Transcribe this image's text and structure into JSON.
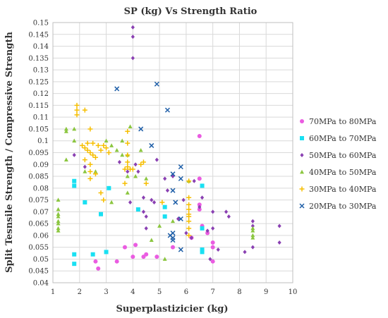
{
  "chart_data": {
    "type": "scatter",
    "title": "SP (kg) Vs Strength Ratio",
    "xlabel": "Superplastizicier (kg)",
    "ylabel": "Split Tesnsile Strength / Compressive Strength",
    "xlim": [
      1,
      10
    ],
    "ylim": [
      0.04,
      0.15
    ],
    "xticks": [
      1,
      2,
      3,
      4,
      5,
      6,
      7,
      8,
      9,
      10
    ],
    "yticks": [
      0.04,
      0.045,
      0.05,
      0.055,
      0.06,
      0.065,
      0.07,
      0.075,
      0.08,
      0.085,
      0.09,
      0.095,
      0.1,
      0.105,
      0.11,
      0.115,
      0.12,
      0.125,
      0.13,
      0.135,
      0.14,
      0.145,
      0.15
    ],
    "ytick_labels": [
      "0.04",
      "0.045",
      "0.05",
      "0.055",
      "0.06",
      "0.065",
      "0.07",
      "0.075",
      "0.08",
      "0.085",
      "0.09",
      "0.095",
      "0.1",
      "0.105",
      "0.11",
      "0.115",
      "0.12",
      "0.125",
      "0.13",
      "0.135",
      "0.14",
      "0.145",
      "0.15"
    ],
    "grid": true,
    "legend_position": "right",
    "series": [
      {
        "name": "70MPa to 80MPa",
        "marker": "circle",
        "color": "#ea5ce1",
        "points": [
          [
            2.6,
            0.049
          ],
          [
            2.7,
            0.046
          ],
          [
            3.4,
            0.049
          ],
          [
            3.7,
            0.055
          ],
          [
            4.0,
            0.051
          ],
          [
            4.1,
            0.056
          ],
          [
            4.4,
            0.051
          ],
          [
            4.5,
            0.052
          ],
          [
            4.9,
            0.051
          ],
          [
            5.5,
            0.055
          ],
          [
            6.2,
            0.059
          ],
          [
            6.5,
            0.073
          ],
          [
            6.5,
            0.071
          ],
          [
            6.6,
            0.064
          ],
          [
            6.8,
            0.061
          ],
          [
            7.0,
            0.057
          ],
          [
            7.0,
            0.055
          ],
          [
            7.0,
            0.049
          ],
          [
            6.5,
            0.102
          ],
          [
            6.5,
            0.084
          ]
        ]
      },
      {
        "name": "60MPa to 70MPa",
        "marker": "square",
        "color": "#19e0f2",
        "points": [
          [
            1.8,
            0.048
          ],
          [
            1.8,
            0.052
          ],
          [
            1.8,
            0.081
          ],
          [
            1.8,
            0.083
          ],
          [
            2.2,
            0.074
          ],
          [
            2.5,
            0.052
          ],
          [
            2.8,
            0.069
          ],
          [
            3.0,
            0.053
          ],
          [
            3.1,
            0.08
          ],
          [
            4.2,
            0.071
          ],
          [
            5.2,
            0.068
          ],
          [
            5.2,
            0.072
          ],
          [
            6.6,
            0.063
          ],
          [
            6.6,
            0.054
          ],
          [
            6.6,
            0.053
          ],
          [
            6.6,
            0.081
          ]
        ]
      },
      {
        "name": "50MPa to 60MPa",
        "marker": "diamond",
        "color": "#8a40b2",
        "points": [
          [
            4.0,
            0.148
          ],
          [
            4.0,
            0.144
          ],
          [
            4.0,
            0.135
          ],
          [
            1.8,
            0.094
          ],
          [
            2.2,
            0.089
          ],
          [
            3.5,
            0.091
          ],
          [
            3.8,
            0.087
          ],
          [
            3.9,
            0.074
          ],
          [
            4.1,
            0.09
          ],
          [
            4.2,
            0.087
          ],
          [
            4.4,
            0.076
          ],
          [
            4.4,
            0.07
          ],
          [
            4.5,
            0.068
          ],
          [
            4.7,
            0.075
          ],
          [
            4.8,
            0.074
          ],
          [
            4.9,
            0.092
          ],
          [
            5.2,
            0.084
          ],
          [
            5.3,
            0.079
          ],
          [
            5.5,
            0.085
          ],
          [
            5.7,
            0.067
          ],
          [
            5.9,
            0.075
          ],
          [
            6.0,
            0.061
          ],
          [
            6.2,
            0.059
          ],
          [
            6.3,
            0.083
          ],
          [
            6.5,
            0.072
          ],
          [
            6.6,
            0.076
          ],
          [
            6.8,
            0.062
          ],
          [
            7.0,
            0.07
          ],
          [
            7.0,
            0.063
          ],
          [
            7.2,
            0.054
          ],
          [
            7.5,
            0.07
          ],
          [
            7.6,
            0.068
          ],
          [
            8.2,
            0.053
          ],
          [
            8.5,
            0.066
          ],
          [
            8.5,
            0.064
          ],
          [
            8.5,
            0.055
          ],
          [
            9.5,
            0.064
          ],
          [
            9.5,
            0.057
          ],
          [
            4.5,
            0.063
          ],
          [
            6.9,
            0.05
          ]
        ]
      },
      {
        "name": "40MPa to 50MPa",
        "marker": "triangle",
        "color": "#8bc63f",
        "points": [
          [
            1.2,
            0.075
          ],
          [
            1.2,
            0.071
          ],
          [
            1.2,
            0.069
          ],
          [
            1.2,
            0.068
          ],
          [
            1.2,
            0.066
          ],
          [
            1.2,
            0.065
          ],
          [
            1.2,
            0.063
          ],
          [
            1.2,
            0.062
          ],
          [
            1.5,
            0.105
          ],
          [
            1.5,
            0.104
          ],
          [
            1.5,
            0.092
          ],
          [
            1.8,
            0.105
          ],
          [
            1.8,
            0.1
          ],
          [
            2.2,
            0.087
          ],
          [
            3.0,
            0.1
          ],
          [
            3.2,
            0.098
          ],
          [
            3.2,
            0.074
          ],
          [
            3.4,
            0.096
          ],
          [
            3.6,
            0.094
          ],
          [
            3.6,
            0.1
          ],
          [
            3.8,
            0.094
          ],
          [
            3.8,
            0.085
          ],
          [
            3.8,
            0.078
          ],
          [
            4.1,
            0.085
          ],
          [
            4.3,
            0.096
          ],
          [
            4.5,
            0.084
          ],
          [
            4.7,
            0.058
          ],
          [
            5.0,
            0.064
          ],
          [
            5.2,
            0.05
          ],
          [
            5.5,
            0.066
          ],
          [
            6.1,
            0.083
          ],
          [
            8.5,
            0.063
          ],
          [
            8.5,
            0.062
          ],
          [
            8.5,
            0.06
          ],
          [
            8.5,
            0.059
          ],
          [
            3.9,
            0.106
          ],
          [
            2.6,
            0.087
          ]
        ]
      },
      {
        "name": "30MPa to 40MPa",
        "marker": "plus",
        "color": "#f6be00",
        "points": [
          [
            1.9,
            0.115
          ],
          [
            1.9,
            0.113
          ],
          [
            1.9,
            0.111
          ],
          [
            2.2,
            0.113
          ],
          [
            2.4,
            0.105
          ],
          [
            2.1,
            0.098
          ],
          [
            2.2,
            0.097
          ],
          [
            2.3,
            0.096
          ],
          [
            2.4,
            0.095
          ],
          [
            2.5,
            0.094
          ],
          [
            2.6,
            0.093
          ],
          [
            2.3,
            0.099
          ],
          [
            2.5,
            0.099
          ],
          [
            2.7,
            0.098
          ],
          [
            2.9,
            0.098
          ],
          [
            3.0,
            0.097
          ],
          [
            2.8,
            0.096
          ],
          [
            3.1,
            0.095
          ],
          [
            2.2,
            0.092
          ],
          [
            2.4,
            0.09
          ],
          [
            2.4,
            0.087
          ],
          [
            2.4,
            0.084
          ],
          [
            2.6,
            0.086
          ],
          [
            2.8,
            0.078
          ],
          [
            2.9,
            0.075
          ],
          [
            3.8,
            0.104
          ],
          [
            3.8,
            0.099
          ],
          [
            3.8,
            0.094
          ],
          [
            3.8,
            0.091
          ],
          [
            3.8,
            0.089
          ],
          [
            3.7,
            0.088
          ],
          [
            3.9,
            0.088
          ],
          [
            4.0,
            0.088
          ],
          [
            4.3,
            0.09
          ],
          [
            4.4,
            0.091
          ],
          [
            4.5,
            0.082
          ],
          [
            3.7,
            0.082
          ],
          [
            6.1,
            0.076
          ],
          [
            6.1,
            0.073
          ],
          [
            6.1,
            0.071
          ],
          [
            6.1,
            0.069
          ],
          [
            6.1,
            0.068
          ],
          [
            6.1,
            0.066
          ],
          [
            6.1,
            0.063
          ],
          [
            6.1,
            0.06
          ],
          [
            6.1,
            0.083
          ],
          [
            5.1,
            0.074
          ]
        ]
      },
      {
        "name": "20MPa to 30MPa",
        "marker": "x",
        "color": "#1f5fa8",
        "points": [
          [
            3.4,
            0.122
          ],
          [
            4.9,
            0.124
          ],
          [
            5.3,
            0.113
          ],
          [
            4.3,
            0.105
          ],
          [
            4.7,
            0.098
          ],
          [
            5.5,
            0.086
          ],
          [
            5.8,
            0.089
          ],
          [
            5.8,
            0.084
          ],
          [
            5.5,
            0.079
          ],
          [
            5.6,
            0.074
          ],
          [
            5.4,
            0.06
          ],
          [
            5.5,
            0.059
          ],
          [
            5.5,
            0.058
          ],
          [
            5.8,
            0.067
          ],
          [
            5.8,
            0.054
          ],
          [
            5.5,
            0.061
          ]
        ]
      }
    ]
  }
}
